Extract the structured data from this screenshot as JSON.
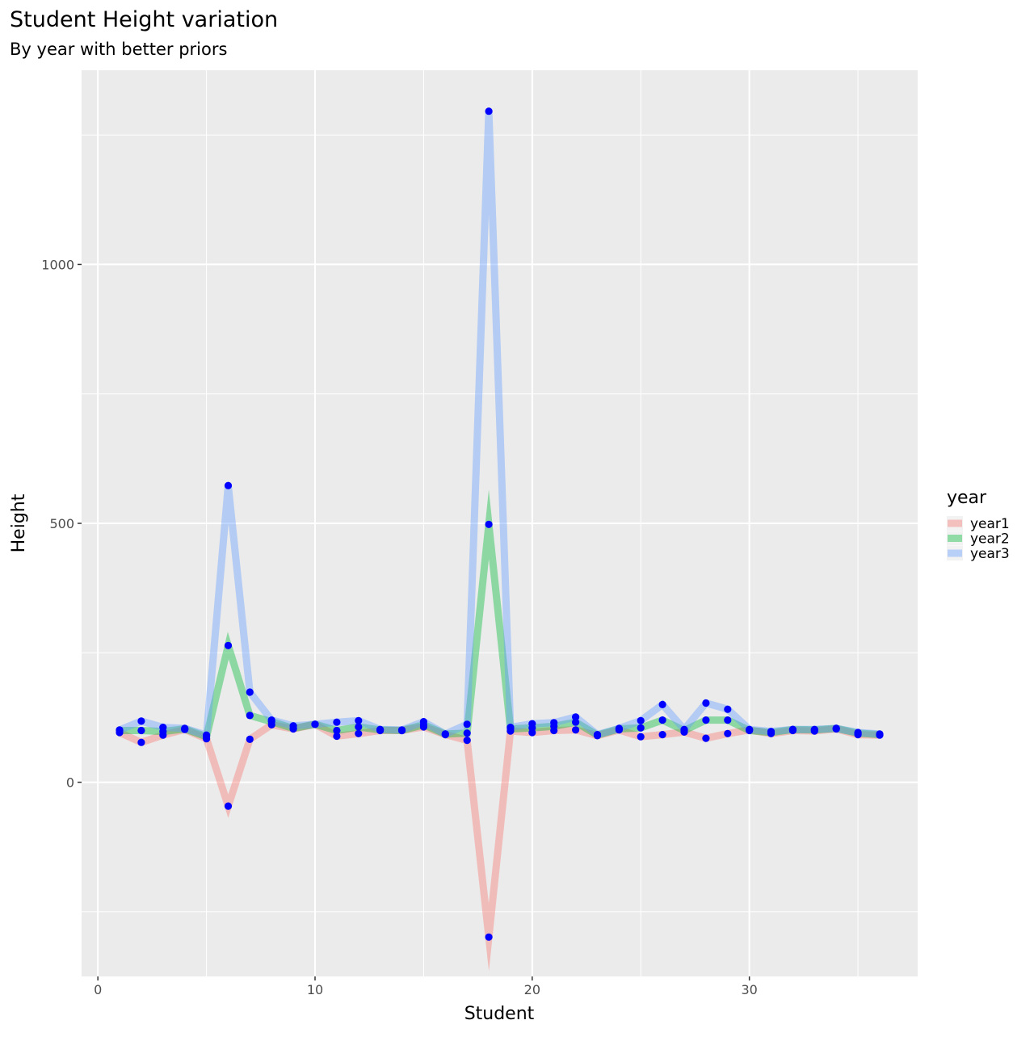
{
  "chart_data": {
    "type": "line",
    "title": "Student Height variation",
    "subtitle": "By year with better priors",
    "xlabel": "Student",
    "ylabel": "Height",
    "xlim": [
      -0.75,
      37.75
    ],
    "ylim": [
      -375,
      1375
    ],
    "x_ticks": [
      0,
      10,
      20,
      30
    ],
    "y_ticks": [
      0,
      500,
      1000
    ],
    "x_tick_labels": [
      "0",
      "10",
      "20",
      "30"
    ],
    "y_tick_labels": [
      "0",
      "500",
      "1000"
    ],
    "grid": true,
    "legend": {
      "title": "year",
      "position": "right"
    },
    "point_color": "#0000ff",
    "x": [
      1,
      2,
      3,
      4,
      5,
      6,
      7,
      8,
      9,
      10,
      11,
      12,
      13,
      14,
      15,
      16,
      17,
      18,
      19,
      20,
      21,
      22,
      23,
      24,
      25,
      26,
      27,
      28,
      29,
      30,
      31,
      32,
      33,
      34,
      35,
      36
    ],
    "series": [
      {
        "name": "year1",
        "color": "#F8766D",
        "values": [
          96,
          77,
          91,
          102,
          84,
          -46,
          83,
          111,
          103,
          112,
          89,
          94,
          100,
          100,
          107,
          92,
          81,
          -299,
          99,
          96,
          100,
          101,
          90,
          101,
          88,
          92,
          97,
          85,
          94,
          101,
          94,
          100,
          99,
          103,
          92,
          91
        ]
      },
      {
        "name": "year2",
        "color": "#00BA38",
        "values": [
          100,
          100,
          98,
          103,
          88,
          264,
          129,
          117,
          104,
          112,
          100,
          107,
          101,
          100,
          111,
          93,
          95,
          498,
          103,
          105,
          108,
          116,
          91,
          103,
          105,
          120,
          100,
          120,
          120,
          100,
          96,
          102,
          101,
          104,
          95,
          92
        ]
      },
      {
        "name": "year3",
        "color": "#619CFF",
        "values": [
          101,
          118,
          106,
          104,
          91,
          573,
          174,
          120,
          109,
          112,
          116,
          119,
          102,
          101,
          117,
          93,
          112,
          1296,
          106,
          113,
          115,
          126,
          92,
          104,
          119,
          150,
          102,
          153,
          141,
          102,
          98,
          102,
          102,
          104,
          96,
          93
        ]
      }
    ]
  }
}
